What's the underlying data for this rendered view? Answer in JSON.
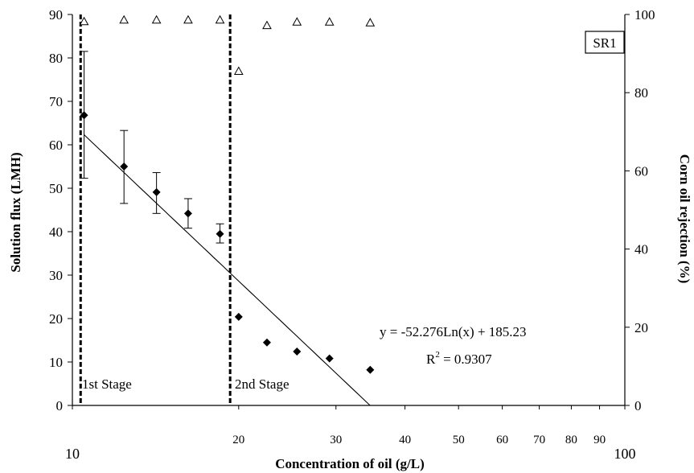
{
  "chart_data": {
    "type": "scatter",
    "title": "",
    "xlabel": "Concentration of oil (g/L)",
    "ylabel": "Solution flux (LMH)",
    "y2label": "Corn oil rejection (%)",
    "x_scale": "log",
    "xlim": [
      10,
      100
    ],
    "ylim": [
      0,
      90
    ],
    "y2lim": [
      0,
      100
    ],
    "x_tick_labels": [
      "10",
      "20",
      "30",
      "40",
      "50",
      "60",
      "70",
      "80",
      "90",
      "100"
    ],
    "x_tick_values": [
      10,
      20,
      30,
      40,
      50,
      60,
      70,
      80,
      90,
      100
    ],
    "y_tick_labels": [
      "0",
      "10",
      "20",
      "30",
      "40",
      "50",
      "60",
      "70",
      "80",
      "90"
    ],
    "y_tick_values": [
      0,
      10,
      20,
      30,
      40,
      50,
      60,
      70,
      80,
      90
    ],
    "y2_tick_labels": [
      "0",
      "20",
      "40",
      "60",
      "80",
      "100"
    ],
    "y2_tick_values": [
      0,
      20,
      40,
      60,
      80,
      100
    ],
    "series": [
      {
        "marker": "diamond",
        "axis": "left",
        "x": [
          10.5,
          12.4,
          14.2,
          16.2,
          18.5,
          20.0,
          22.5,
          25.5,
          29.2,
          34.6
        ],
        "y": [
          66.8,
          55.0,
          49.1,
          44.2,
          39.5,
          20.4,
          14.5,
          12.4,
          10.8,
          8.2
        ],
        "error_upper": [
          81.5,
          63.3,
          53.6,
          47.6,
          41.8,
          null,
          null,
          null,
          null,
          null
        ],
        "error_lower": [
          52.3,
          46.5,
          44.2,
          40.8,
          37.4,
          null,
          null,
          null,
          null,
          null
        ]
      },
      {
        "marker": "triangle",
        "axis": "right",
        "x": [
          10.5,
          12.4,
          14.2,
          16.2,
          18.5,
          20.0,
          22.5,
          25.5,
          29.2,
          34.6
        ],
        "y": [
          98.2,
          98.6,
          98.6,
          98.6,
          98.6,
          85.5,
          97.2,
          98.1,
          98.1,
          97.9
        ]
      }
    ],
    "trendline": {
      "equation": "y = -52.276Ln(x) + 185.23",
      "r2_label": "R",
      "r2_sup": "2",
      "r2_value": " = 0.9307",
      "a": -52.276,
      "b": 185.23
    },
    "stage_dividers": [
      10.35,
      19.3
    ],
    "stage_labels": [
      "1st Stage",
      "2nd Stage"
    ],
    "tag": "SR1",
    "grid": false
  }
}
